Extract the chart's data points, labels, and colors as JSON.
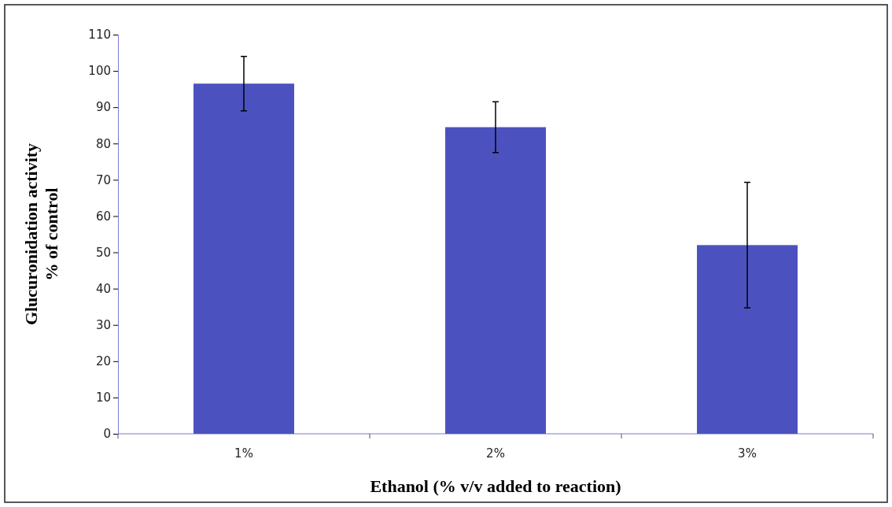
{
  "chart_data": {
    "type": "bar",
    "categories": [
      "1%",
      "2%",
      "3%"
    ],
    "values": [
      96.5,
      84.5,
      52
    ],
    "errors": [
      7.5,
      7,
      17.3
    ],
    "color": "#4b52c0",
    "xlabel": "Ethanol (% v/v added to reaction)",
    "ylabel": "Glucuronidation activity\n% of control",
    "ylim": [
      0,
      110
    ],
    "yticks": [
      0,
      10,
      20,
      30,
      40,
      50,
      60,
      70,
      80,
      90,
      100,
      110
    ]
  }
}
